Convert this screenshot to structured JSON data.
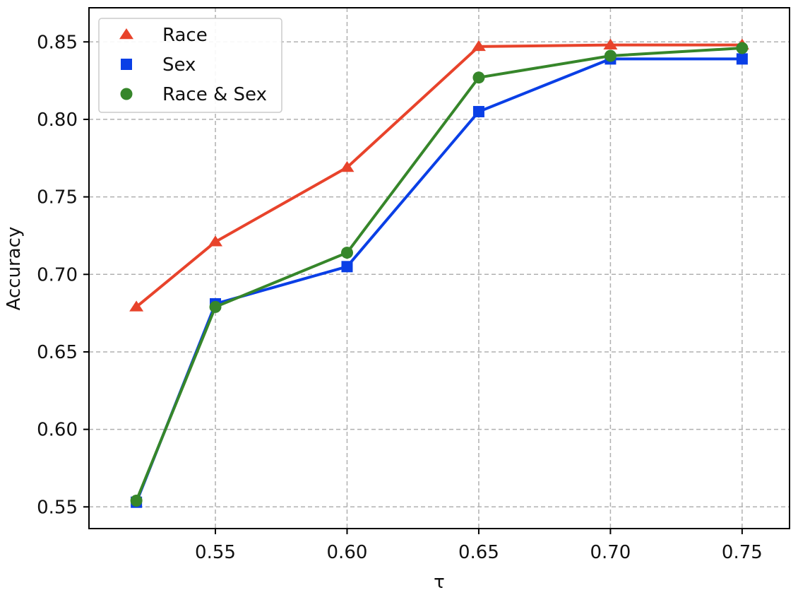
{
  "chart_data": {
    "type": "line",
    "title": "",
    "xlabel": "τ",
    "ylabel": "Accuracy",
    "xlim": [
      0.502,
      0.768
    ],
    "ylim": [
      0.536,
      0.872
    ],
    "xticks": [
      0.55,
      0.6,
      0.65,
      0.7,
      0.75
    ],
    "xtick_labels": [
      "0.55",
      "0.60",
      "0.65",
      "0.70",
      "0.75"
    ],
    "yticks": [
      0.55,
      0.6,
      0.65,
      0.7,
      0.75,
      0.8,
      0.85
    ],
    "ytick_labels": [
      "0.55",
      "0.60",
      "0.65",
      "0.70",
      "0.75",
      "0.80",
      "0.85"
    ],
    "grid": true,
    "legend_position": "top-left",
    "x": [
      0.52,
      0.55,
      0.6,
      0.65,
      0.7,
      0.75
    ],
    "series": [
      {
        "name": "Race",
        "marker": "triangle",
        "color": "#e8432b",
        "values": [
          0.679,
          0.721,
          0.769,
          0.847,
          0.848,
          0.848
        ]
      },
      {
        "name": "Sex",
        "marker": "square",
        "color": "#0a3fe6",
        "values": [
          0.553,
          0.681,
          0.705,
          0.805,
          0.839,
          0.839
        ]
      },
      {
        "name": "Race & Sex",
        "marker": "circle",
        "color": "#36862a",
        "values": [
          0.554,
          0.679,
          0.714,
          0.827,
          0.841,
          0.846
        ]
      }
    ]
  }
}
